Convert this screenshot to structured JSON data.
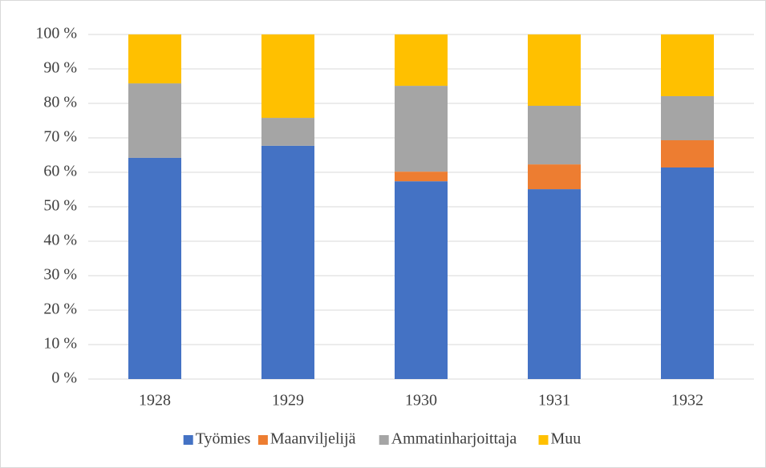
{
  "chart_data": {
    "type": "stacked_bar",
    "categories": [
      "1928",
      "1929",
      "1930",
      "1931",
      "1932"
    ],
    "series": [
      {
        "name": "Työmies",
        "color": "#4472c4",
        "values": [
          64.2,
          67.7,
          57.4,
          55.1,
          61.4
        ]
      },
      {
        "name": "Maanviljelijä",
        "color": "#ed7d31",
        "values": [
          0,
          0,
          2.8,
          7.2,
          7.9
        ]
      },
      {
        "name": "Ammatinharjoittaja",
        "color": "#a5a5a5",
        "values": [
          21.6,
          8.1,
          24.9,
          17.0,
          12.8
        ]
      },
      {
        "name": "Muu",
        "color": "#ffc000",
        "values": [
          14.2,
          24.2,
          14.9,
          20.7,
          17.9
        ]
      }
    ],
    "ylim": [
      0,
      100
    ],
    "yticks": [
      {
        "value": 0,
        "label": "0 %"
      },
      {
        "value": 10,
        "label": "10 %"
      },
      {
        "value": 20,
        "label": "20 %"
      },
      {
        "value": 30,
        "label": "30 %"
      },
      {
        "value": 40,
        "label": "40 %"
      },
      {
        "value": 50,
        "label": "50 %"
      },
      {
        "value": 60,
        "label": "60 %"
      },
      {
        "value": 70,
        "label": "70 %"
      },
      {
        "value": 80,
        "label": "80 %"
      },
      {
        "value": 90,
        "label": "90 %"
      },
      {
        "value": 100,
        "label": "100 %"
      }
    ],
    "grid": true,
    "legend": "bottom"
  }
}
